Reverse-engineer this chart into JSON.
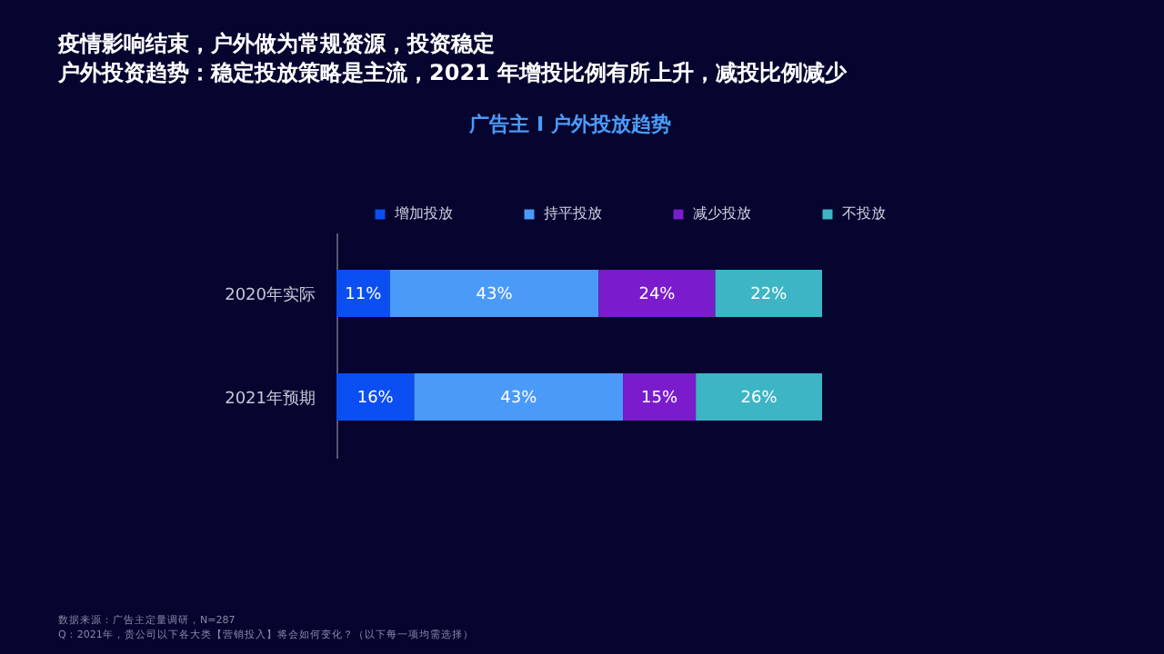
{
  "chart_data": {
    "type": "bar",
    "orientation": "horizontal",
    "stacked": true,
    "title": "广告主 I 户外投放趋势",
    "annotations": [
      "疫情影响结束，户外做为常规资源，投资稳定",
      "户外投资趋势：稳定投放策略是主流，2021 年增投比例有所上升，减投比例减少",
      "数据来源：广告主定量调研，N=287",
      "Q：2021年，贵公司以下各大类【营销投入】将会如何变化？（以下每一项均需选择）"
    ],
    "categories": [
      "2020年实际",
      "2021年预期"
    ],
    "series": [
      {
        "name": "增加投放",
        "color": "#0b4ff2",
        "values": [
          11,
          16
        ],
        "value_labels": [
          "11%",
          "16%"
        ]
      },
      {
        "name": "持平投放",
        "color": "#4a9af8",
        "values": [
          43,
          43
        ],
        "value_labels": [
          "43%",
          "43%"
        ]
      },
      {
        "name": "减少投放",
        "color": "#7a1ccc",
        "values": [
          24,
          15
        ],
        "value_labels": [
          "24%",
          "15%"
        ]
      },
      {
        "name": "不投放",
        "color": "#3db5c4",
        "values": [
          22,
          26
        ],
        "value_labels": [
          "22%",
          "26%"
        ]
      }
    ],
    "legend": "top"
  }
}
